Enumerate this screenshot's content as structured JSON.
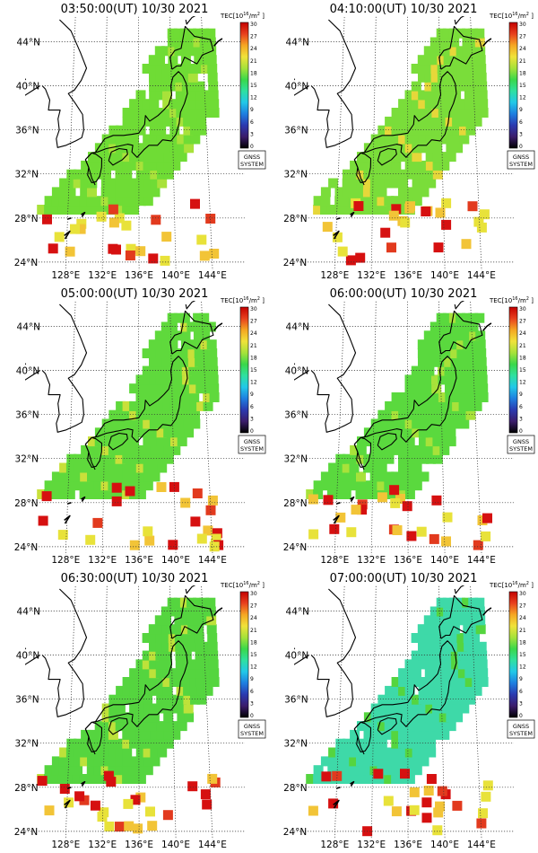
{
  "colorbar": {
    "label": "TEC[10",
    "exponent": "16",
    "unit": "/m",
    "unit_exp": "2",
    "unit_close": "]",
    "ticks": [
      "30",
      "27",
      "24",
      "21",
      "18",
      "15",
      "12",
      "9",
      "6",
      "3",
      "0"
    ],
    "colors": [
      "#000000",
      "#3b1c6b",
      "#2b3ab0",
      "#1e7fe0",
      "#22c8e8",
      "#2fe0a0",
      "#3ad84a",
      "#a6e23a",
      "#f0e23a",
      "#f5a623",
      "#e8401e",
      "#c40000"
    ]
  },
  "badge": {
    "line1": "GNSS",
    "line2": "SYSTEM"
  },
  "lat_labels": [
    "44°N",
    "40°N",
    "36°N",
    "32°N",
    "28°N",
    "24°N"
  ],
  "lon_labels": [
    "128°E",
    "132°E",
    "136°E",
    "140°E",
    "144°E"
  ],
  "panels": [
    {
      "title": "03:50:00(UT) 10/30 2021",
      "base_color": "#6fdc35",
      "accent": "#a8e23a"
    },
    {
      "title": "04:10:00(UT) 10/30 2021",
      "base_color": "#7add3a",
      "accent": "#e6d73a"
    },
    {
      "title": "05:00:00(UT) 10/30 2021",
      "base_color": "#5fd93c",
      "accent": "#c9e03a"
    },
    {
      "title": "06:00:00(UT) 10/30 2021",
      "base_color": "#5ad93e",
      "accent": "#a8e23a"
    },
    {
      "title": "06:30:00(UT) 10/30 2021",
      "base_color": "#55d53f",
      "accent": "#bde23a"
    },
    {
      "title": "07:00:00(UT) 10/30 2021",
      "base_color": "#3ed9a8",
      "accent": "#55d53f"
    }
  ]
}
